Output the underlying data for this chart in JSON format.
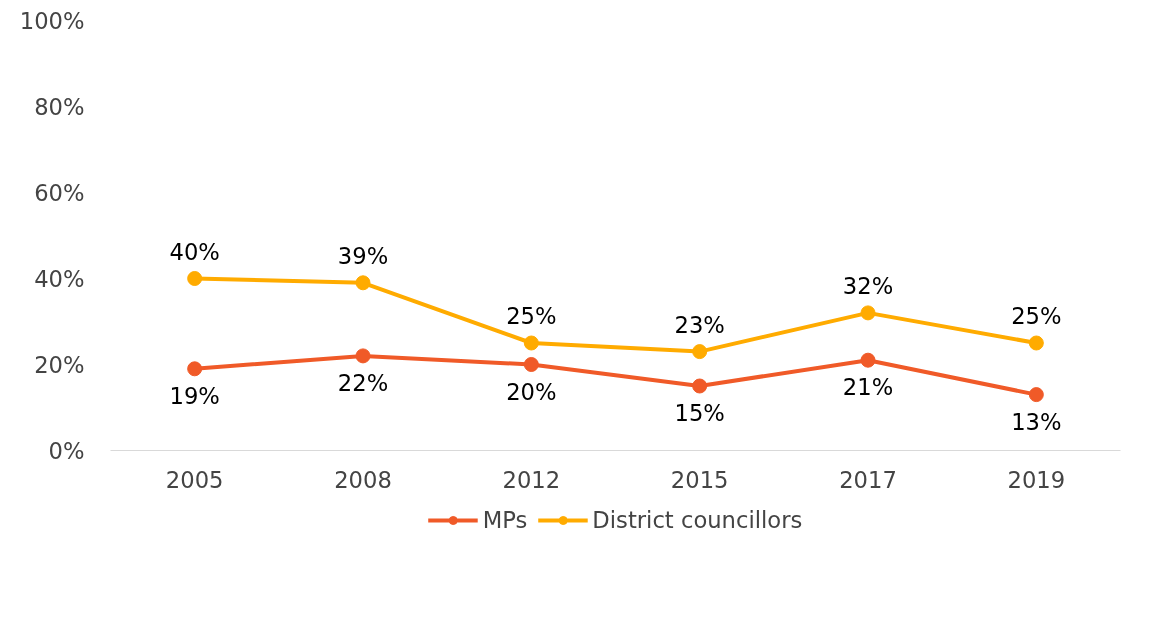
{
  "chart_data": {
    "type": "line",
    "categories": [
      "2005",
      "2008",
      "2012",
      "2015",
      "2017",
      "2019"
    ],
    "series": [
      {
        "name": "MPs",
        "color": "#f05a28",
        "values": [
          19,
          22,
          20,
          15,
          21,
          13
        ],
        "value_labels": [
          "19%",
          "22%",
          "20%",
          "15%",
          "21%",
          "13%"
        ]
      },
      {
        "name": "District councillors",
        "color": "#ffab00",
        "values": [
          40,
          39,
          25,
          23,
          32,
          25
        ],
        "value_labels": [
          "40%",
          "39%",
          "25%",
          "23%",
          "32%",
          "25%"
        ]
      }
    ],
    "ylim": [
      0,
      100
    ],
    "yticks": [
      {
        "value": 0,
        "label": "0%"
      },
      {
        "value": 20,
        "label": "20%"
      },
      {
        "value": 40,
        "label": "40%"
      },
      {
        "value": 60,
        "label": "60%"
      },
      {
        "value": 80,
        "label": "80%"
      },
      {
        "value": 100,
        "label": "100%"
      }
    ],
    "grid": false,
    "legend": "bottom",
    "marker": "circle",
    "line_style": "solid"
  }
}
